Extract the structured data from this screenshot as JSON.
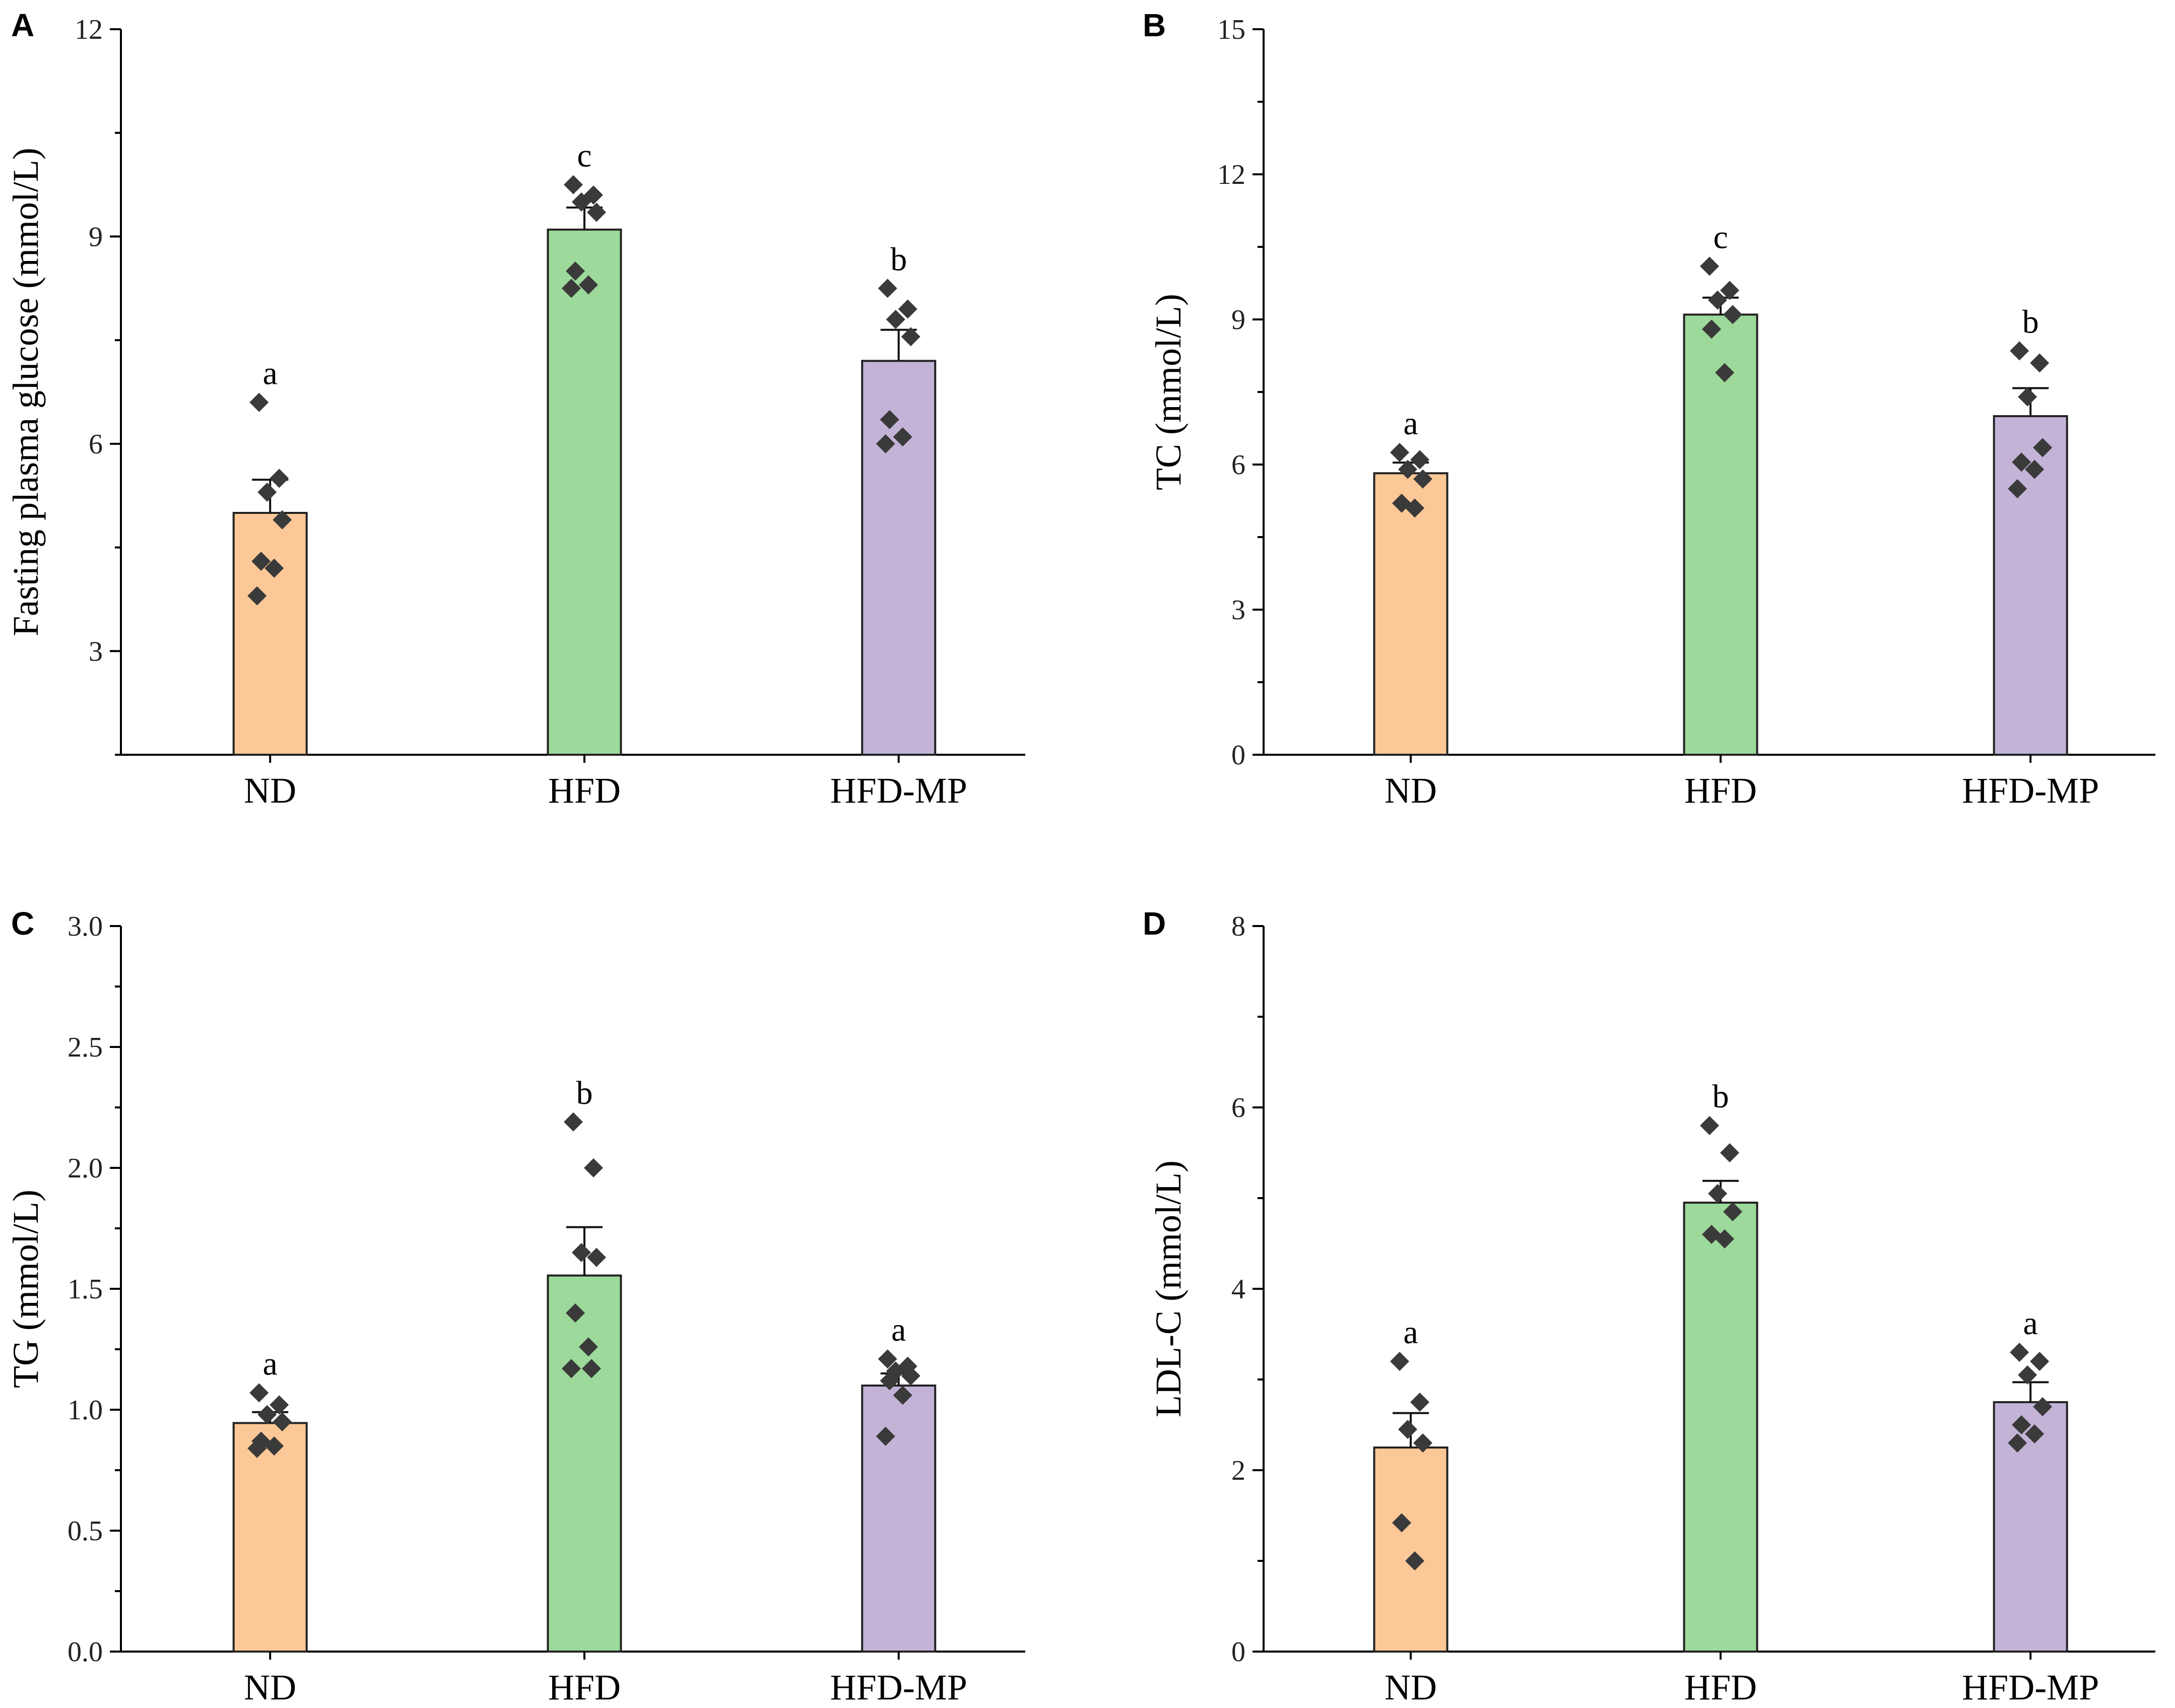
{
  "colors": {
    "ND": "#FCC897",
    "HFD": "#9CD99A",
    "HFD-MP": "#C2B3D7",
    "point": "#3a3a3a"
  },
  "chart_data": [
    {
      "panel": "A",
      "type": "bar",
      "ylabel": "Fasting plasma glucose (mmol/L)",
      "ylim": [
        1.5,
        12
      ],
      "yticks": [
        3,
        6,
        9,
        12
      ],
      "ytick_labels": [
        "3",
        "6",
        "9",
        "12"
      ],
      "categories": [
        "ND",
        "HFD",
        "HFD-MP"
      ],
      "values": [
        5.0,
        9.1,
        7.2
      ],
      "errors": [
        0.48,
        0.32,
        0.45
      ],
      "significance": [
        "a",
        "c",
        "b"
      ],
      "points": [
        [
          6.6,
          5.5,
          5.3,
          4.9,
          4.3,
          4.2,
          3.8
        ],
        [
          9.75,
          9.6,
          9.5,
          9.35,
          8.5,
          8.3,
          8.25
        ],
        [
          8.25,
          7.95,
          7.8,
          7.55,
          6.35,
          6.1,
          6.0
        ]
      ]
    },
    {
      "panel": "B",
      "type": "bar",
      "ylabel": "TC (mmol/L)",
      "ylim": [
        0,
        15
      ],
      "yticks": [
        0,
        3,
        6,
        9,
        12,
        15
      ],
      "ytick_labels": [
        "0",
        "3",
        "6",
        "9",
        "12",
        "15"
      ],
      "categories": [
        "ND",
        "HFD",
        "HFD-MP"
      ],
      "values": [
        5.82,
        9.1,
        7.0
      ],
      "errors": [
        0.22,
        0.35,
        0.58
      ],
      "significance": [
        "a",
        "c",
        "b"
      ],
      "points": [
        [
          6.25,
          6.1,
          5.9,
          5.7,
          5.2,
          5.1
        ],
        [
          10.1,
          9.6,
          9.4,
          9.1,
          8.8,
          7.9
        ],
        [
          8.35,
          8.1,
          7.4,
          6.35,
          6.05,
          5.9,
          5.5
        ]
      ]
    },
    {
      "panel": "C",
      "type": "bar",
      "ylabel": "TG (mmol/L)",
      "ylim": [
        0,
        3.0
      ],
      "yticks": [
        0,
        0.5,
        1.0,
        1.5,
        2.0,
        2.5,
        3.0
      ],
      "ytick_labels": [
        "0.0",
        "0.5",
        "1.0",
        "1.5",
        "2.0",
        "2.5",
        "3.0"
      ],
      "categories": [
        "ND",
        "HFD",
        "HFD-MP"
      ],
      "values": [
        0.945,
        1.555,
        1.1
      ],
      "errors": [
        0.045,
        0.2,
        0.05
      ],
      "significance": [
        "a",
        "b",
        "a"
      ],
      "points": [
        [
          1.07,
          1.02,
          0.98,
          0.95,
          0.87,
          0.85,
          0.84
        ],
        [
          2.19,
          2.0,
          1.65,
          1.63,
          1.4,
          1.26,
          1.17,
          1.17
        ],
        [
          1.21,
          1.18,
          1.16,
          1.14,
          1.12,
          1.06,
          0.89
        ]
      ]
    },
    {
      "panel": "D",
      "type": "bar",
      "ylabel": "LDL-C (mmol/L)",
      "ylim": [
        0,
        8
      ],
      "yticks": [
        0,
        2,
        4,
        6,
        8
      ],
      "ytick_labels": [
        "0",
        "2",
        "4",
        "6",
        "8"
      ],
      "categories": [
        "ND",
        "HFD",
        "HFD-MP"
      ],
      "values": [
        2.25,
        4.95,
        2.75
      ],
      "errors": [
        0.38,
        0.24,
        0.22
      ],
      "significance": [
        "a",
        "b",
        "a"
      ],
      "points": [
        [
          3.2,
          2.75,
          2.45,
          2.3,
          1.42,
          1.0
        ],
        [
          5.8,
          5.5,
          5.05,
          4.85,
          4.6,
          4.55
        ],
        [
          3.3,
          3.2,
          3.05,
          2.7,
          2.5,
          2.4,
          2.3
        ]
      ]
    }
  ]
}
